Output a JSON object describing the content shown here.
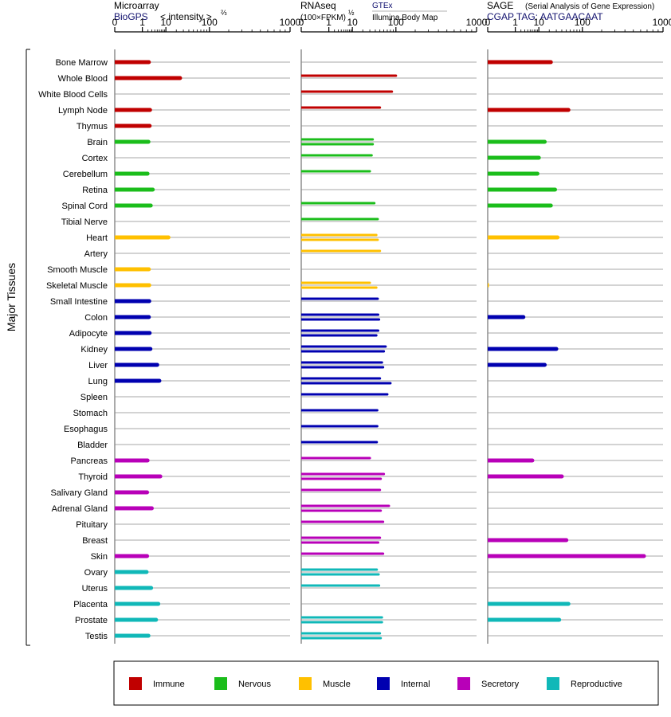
{
  "left_axis_label": "Major Tissues",
  "panels": [
    {
      "id": "microarray",
      "header": {
        "line1": "Microarray",
        "line2": "BioGPS",
        "line2b": "< intensity >",
        "exponent": "⅔"
      }
    },
    {
      "id": "rnaseq",
      "header": {
        "line1": "RNAseq",
        "line2": "(100×FPKM)",
        "exponent": "½",
        "source_top": "GTEx",
        "source_bottom": "Illumina Body Map"
      }
    },
    {
      "id": "sage",
      "header": {
        "line1": "SAGE",
        "line1b": "(Serial Analysis of Gene Expression)",
        "line2": "CGAP TAG: AATGAACAAT"
      }
    }
  ],
  "legend": [
    {
      "label": "Immune",
      "color": "#c00000"
    },
    {
      "label": "Nervous",
      "color": "#1bbd1b"
    },
    {
      "label": "Muscle",
      "color": "#ffc000"
    },
    {
      "label": "Internal",
      "color": "#0000b0"
    },
    {
      "label": "Secretory",
      "color": "#b800b8"
    },
    {
      "label": "Reproductive",
      "color": "#10b8b8"
    }
  ],
  "chart_data": {
    "type": "bar",
    "x_scale": "power",
    "x_ticks": [
      "0",
      "1",
      "10",
      "100",
      "1000"
    ],
    "x_tick_values": [
      0,
      1,
      10,
      100,
      1000
    ],
    "xlim": [
      0,
      1000
    ],
    "categories": [
      "Bone Marrow",
      "Whole Blood",
      "White Blood Cells",
      "Lymph Node",
      "Thymus",
      "Brain",
      "Cortex",
      "Cerebellum",
      "Retina",
      "Spinal Cord",
      "Tibial Nerve",
      "Heart",
      "Artery",
      "Smooth Muscle",
      "Skeletal Muscle",
      "Small Intestine",
      "Colon",
      "Adipocyte",
      "Kidney",
      "Liver",
      "Lung",
      "Spleen",
      "Stomach",
      "Esophagus",
      "Bladder",
      "Pancreas",
      "Thyroid",
      "Salivary Gland",
      "Adrenal Gland",
      "Pituitary",
      "Breast",
      "Skin",
      "Ovary",
      "Uterus",
      "Placenta",
      "Prostate",
      "Testis"
    ],
    "tissue_groups": [
      "Immune",
      "Immune",
      "Immune",
      "Immune",
      "Immune",
      "Nervous",
      "Nervous",
      "Nervous",
      "Nervous",
      "Nervous",
      "Nervous",
      "Muscle",
      "Muscle",
      "Muscle",
      "Muscle",
      "Internal",
      "Internal",
      "Internal",
      "Internal",
      "Internal",
      "Internal",
      "Internal",
      "Internal",
      "Internal",
      "Internal",
      "Secretory",
      "Secretory",
      "Secretory",
      "Secretory",
      "Secretory",
      "Secretory",
      "Secretory",
      "Reproductive",
      "Reproductive",
      "Reproductive",
      "Reproductive",
      "Reproductive"
    ],
    "series": [
      {
        "name": "Microarray",
        "values": [
          2.2,
          25,
          null,
          2.5,
          2.4,
          2.1,
          null,
          1.9,
          3.3,
          2.7,
          null,
          12,
          null,
          2.2,
          2.3,
          2.3,
          2.2,
          2.4,
          2.6,
          5.0,
          6.0,
          null,
          null,
          null,
          null,
          1.9,
          6.5,
          1.8,
          3.0,
          null,
          null,
          1.8,
          1.7,
          2.8,
          5.5,
          4.5,
          2.1
        ]
      },
      {
        "name": "RNAseq GTEx",
        "values": [
          null,
          100,
          85,
          50,
          null,
          35,
          33,
          30,
          null,
          38,
          45,
          42,
          50,
          null,
          30,
          45,
          46,
          46,
          65,
          55,
          50,
          70,
          44,
          44,
          43,
          30,
          60,
          50,
          75,
          58,
          50,
          58,
          43,
          48,
          null,
          55,
          50
        ]
      },
      {
        "name": "RNAseq Illumina Body Map",
        "values": [
          null,
          null,
          null,
          null,
          null,
          35,
          null,
          null,
          null,
          null,
          null,
          45,
          null,
          null,
          42,
          null,
          48,
          42,
          60,
          58,
          80,
          null,
          null,
          null,
          null,
          null,
          52,
          null,
          52,
          null,
          46,
          null,
          47,
          null,
          null,
          55,
          52
        ]
      },
      {
        "name": "SAGE",
        "values": [
          22,
          null,
          null,
          55,
          null,
          15,
          10,
          9,
          28,
          22,
          null,
          32,
          null,
          null,
          0,
          null,
          2.6,
          null,
          30,
          15,
          null,
          null,
          null,
          null,
          null,
          6,
          40,
          null,
          null,
          null,
          50,
          650,
          null,
          null,
          55,
          35,
          null
        ]
      }
    ]
  }
}
